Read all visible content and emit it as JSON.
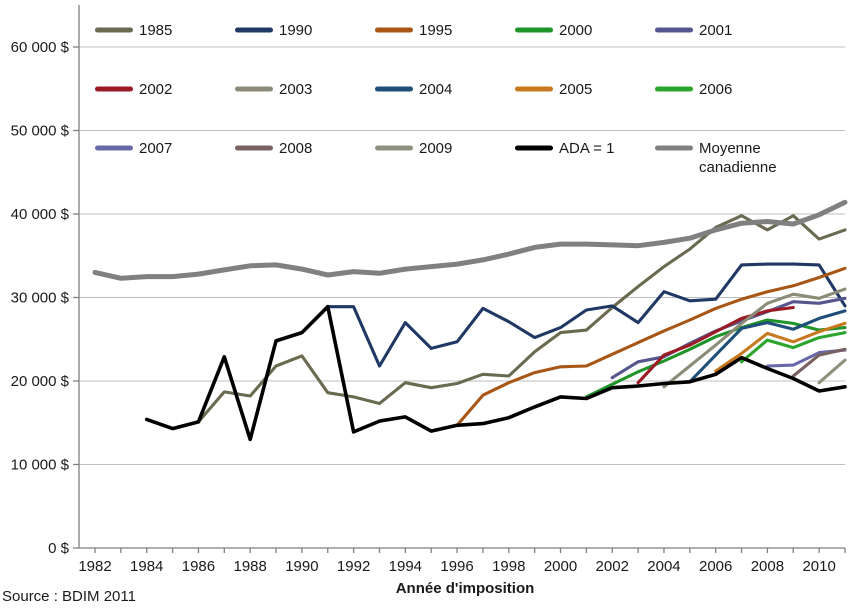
{
  "chart_data": {
    "type": "line",
    "title": "",
    "xlabel": "Année d'imposition",
    "ylabel": "",
    "source": "Source : BDIM 2011",
    "x_range": [
      1982,
      2011
    ],
    "ylim": [
      0,
      60000
    ],
    "grid": "horizontal-only",
    "legend_position": "top-inside-3-rows",
    "axis_color": "#7f7f7f",
    "gridline_color": "#bfbfbf",
    "y_ticks": [
      {
        "value": 0,
        "label": "0 $"
      },
      {
        "value": 10000,
        "label": "10 000 $"
      },
      {
        "value": 20000,
        "label": "20 000 $"
      },
      {
        "value": 30000,
        "label": "30 000 $"
      },
      {
        "value": 40000,
        "label": "40 000 $"
      },
      {
        "value": 50000,
        "label": "50 000 $"
      },
      {
        "value": 60000,
        "label": "60 000 $"
      }
    ],
    "x_tick_labels": [
      "1982",
      "1984",
      "1986",
      "1988",
      "1990",
      "1992",
      "1994",
      "1996",
      "1998",
      "2000",
      "2002",
      "2004",
      "2006",
      "2008",
      "2010"
    ],
    "series": [
      {
        "label": "1985",
        "color": "#6a6a50",
        "start_year": 1986,
        "values": [
          15100,
          18700,
          18200,
          21800,
          23000,
          18600,
          18100,
          17300,
          19800,
          19200,
          19700,
          20800,
          20600,
          23500,
          25800,
          26100,
          28800,
          31300,
          33700,
          35800,
          38400,
          39800,
          38100,
          39800,
          37000,
          38100
        ]
      },
      {
        "label": "1990",
        "color": "#1f3864",
        "start_year": 1991,
        "values": [
          28900,
          28900,
          21800,
          27000,
          23900,
          24700,
          28700,
          27100,
          25200,
          26400,
          28500,
          29000,
          27000,
          30700,
          29600,
          29800,
          33900,
          34000,
          34000,
          33900,
          29000
        ]
      },
      {
        "label": "1995",
        "color": "#a85616",
        "start_year": 1996,
        "values": [
          14700,
          18300,
          19800,
          21000,
          21700,
          21800,
          23200,
          24600,
          26000,
          27300,
          28700,
          29800,
          30700,
          31400,
          32400,
          33500
        ]
      },
      {
        "label": "2000",
        "color": "#1f9428",
        "start_year": 2001,
        "values": [
          18100,
          19600,
          21100,
          22400,
          23800,
          25300,
          26400,
          27300,
          26900,
          26100,
          26400
        ]
      },
      {
        "label": "2001",
        "color": "#56568e",
        "start_year": 2002,
        "values": [
          20400,
          22300,
          22900,
          24500,
          26000,
          27200,
          28300,
          29500,
          29300,
          29900
        ]
      },
      {
        "label": "2002",
        "color": "#9c1a24",
        "start_year": 2003,
        "values": [
          19800,
          23100,
          24300,
          25900,
          27500,
          28400,
          28800
        ]
      },
      {
        "label": "2003",
        "color": "#8b8b78",
        "start_year": 2004,
        "values": [
          19300,
          21800,
          24300,
          26900,
          29300,
          30400,
          29900,
          31000
        ]
      },
      {
        "label": "2004",
        "color": "#1f4e79",
        "start_year": 2005,
        "values": [
          19900,
          23100,
          26300,
          27000,
          26200,
          27500,
          28400
        ]
      },
      {
        "label": "2005",
        "color": "#c8781e",
        "start_year": 2006,
        "values": [
          21200,
          23300,
          25700,
          24700,
          25900,
          26900
        ]
      },
      {
        "label": "2006",
        "color": "#2ca52c",
        "start_year": 2007,
        "values": [
          22300,
          24900,
          24000,
          25200,
          25800
        ]
      },
      {
        "label": "2007",
        "color": "#6868a8",
        "start_year": 2008,
        "values": [
          21800,
          21900,
          23400,
          23700
        ]
      },
      {
        "label": "2008",
        "color": "#7a6161",
        "start_year": 2009,
        "values": [
          20600,
          23100,
          23800
        ]
      },
      {
        "label": "2009",
        "color": "#90907e",
        "start_year": 2010,
        "values": [
          19800,
          22500
        ]
      },
      {
        "label": "ADA = 1",
        "color": "#000000",
        "start_year": 1984,
        "values": [
          15400,
          14300,
          15100,
          22900,
          13000,
          24800,
          25800,
          28900,
          13900,
          15200,
          15700,
          14000,
          14700,
          14900,
          15600,
          16900,
          18100,
          17900,
          19200,
          19400,
          19700,
          19900,
          20800,
          22800,
          21500,
          20300,
          18800,
          19300
        ]
      },
      {
        "label": "Moyenne canadienne",
        "label_lines": [
          "Moyenne",
          "canadienne"
        ],
        "color": "#808080",
        "start_year": 1982,
        "values": [
          33000,
          32300,
          32500,
          32500,
          32800,
          33300,
          33800,
          33900,
          33400,
          32700,
          33100,
          32900,
          33400,
          33700,
          34000,
          34500,
          35200,
          36000,
          36400,
          36400,
          36300,
          36200,
          36600,
          37100,
          38100,
          38900,
          39100,
          38800,
          39900,
          41400
        ]
      }
    ]
  }
}
